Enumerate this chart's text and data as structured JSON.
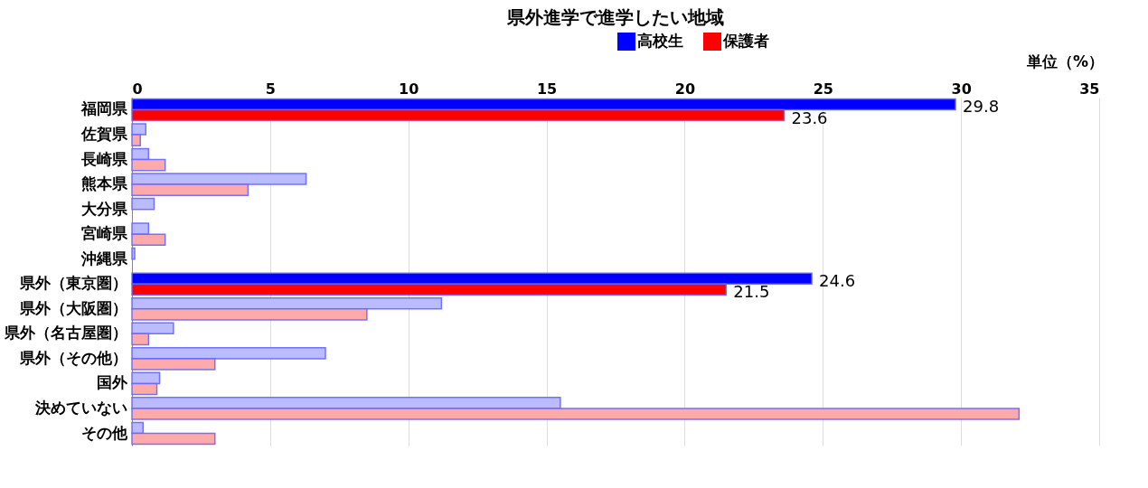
{
  "chart_data": {
    "type": "bar",
    "orientation": "horizontal",
    "title": "県外進学で進学したい地域",
    "categories": [
      "福岡県",
      "佐賀県",
      "長崎県",
      "熊本県",
      "大分県",
      "宮崎県",
      "沖縄県",
      "県外（東京圏）",
      "県外（大阪圏）",
      "県外（名古屋圏）",
      "県外（その他）",
      "国外",
      "決めていない",
      "その他"
    ],
    "series": [
      {
        "name": "高校生",
        "color": "#0000ff",
        "colors": [
          "#0000ff",
          "#bbbbff",
          "#bbbbff",
          "#bbbbff",
          "#bbbbff",
          "#bbbbff",
          "#bbbbff",
          "#0000ff",
          "#bbbbff",
          "#bbbbff",
          "#bbbbff",
          "#bbbbff",
          "#bbbbff",
          "#bbbbff"
        ],
        "values": [
          29.8,
          0.5,
          0.6,
          6.3,
          0.8,
          0.6,
          0.1,
          24.6,
          11.2,
          1.5,
          7.0,
          1.0,
          15.5,
          0.4
        ],
        "value_labels": [
          "29.8",
          null,
          null,
          null,
          null,
          null,
          null,
          "24.6",
          null,
          null,
          null,
          null,
          null,
          null
        ]
      },
      {
        "name": "保護者",
        "color": "#ff0000",
        "colors": [
          "#ff0000",
          "#ffaaaa",
          "#ffaaaa",
          "#ffaaaa",
          null,
          "#ffaaaa",
          null,
          "#ff0000",
          "#ffaaaa",
          "#ffaaaa",
          "#ffaaaa",
          "#ffaaaa",
          "#ffaaaa",
          "#ffaaaa"
        ],
        "values": [
          23.6,
          0.3,
          1.2,
          4.2,
          null,
          1.2,
          null,
          21.5,
          8.5,
          0.6,
          3.0,
          0.9,
          32.1,
          3.0
        ],
        "value_labels": [
          "23.6",
          null,
          null,
          null,
          null,
          null,
          null,
          "21.5",
          null,
          null,
          null,
          null,
          null,
          null
        ]
      }
    ],
    "xlim": [
      0,
      35
    ],
    "xticks": [
      0,
      5,
      10,
      15,
      20,
      25,
      30,
      35
    ],
    "grid": "x",
    "legend": "top",
    "annotations": [
      "単位（%）"
    ]
  }
}
